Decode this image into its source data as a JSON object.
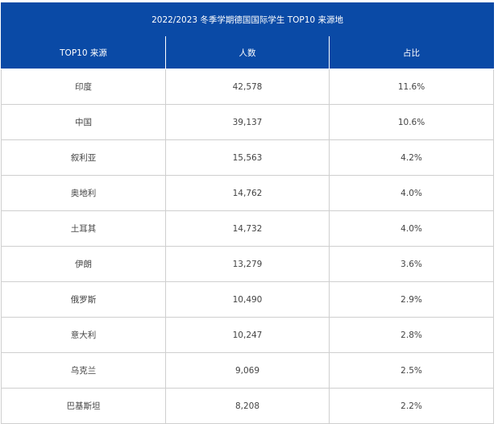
{
  "table": {
    "title": "2022/2023 冬季学期德国国际学生 TOP10 来源地",
    "headers": [
      "TOP10 来源",
      "人数",
      "占比"
    ],
    "rows": [
      {
        "country": "印度",
        "count": "42,578",
        "share": "11.6%"
      },
      {
        "country": "中国",
        "count": "39,137",
        "share": "10.6%"
      },
      {
        "country": "叙利亚",
        "count": "15,563",
        "share": "4.2%"
      },
      {
        "country": "奥地利",
        "count": "14,762",
        "share": "4.0%"
      },
      {
        "country": "土耳其",
        "count": "14,732",
        "share": "4.0%"
      },
      {
        "country": "伊朗",
        "count": "13,279",
        "share": "3.6%"
      },
      {
        "country": "俄罗斯",
        "count": "10,490",
        "share": "2.9%"
      },
      {
        "country": "意大利",
        "count": "10,247",
        "share": "2.8%"
      },
      {
        "country": "乌克兰",
        "count": "9,069",
        "share": "2.5%"
      },
      {
        "country": "巴基斯坦",
        "count": "8,208",
        "share": "2.2%"
      }
    ]
  }
}
